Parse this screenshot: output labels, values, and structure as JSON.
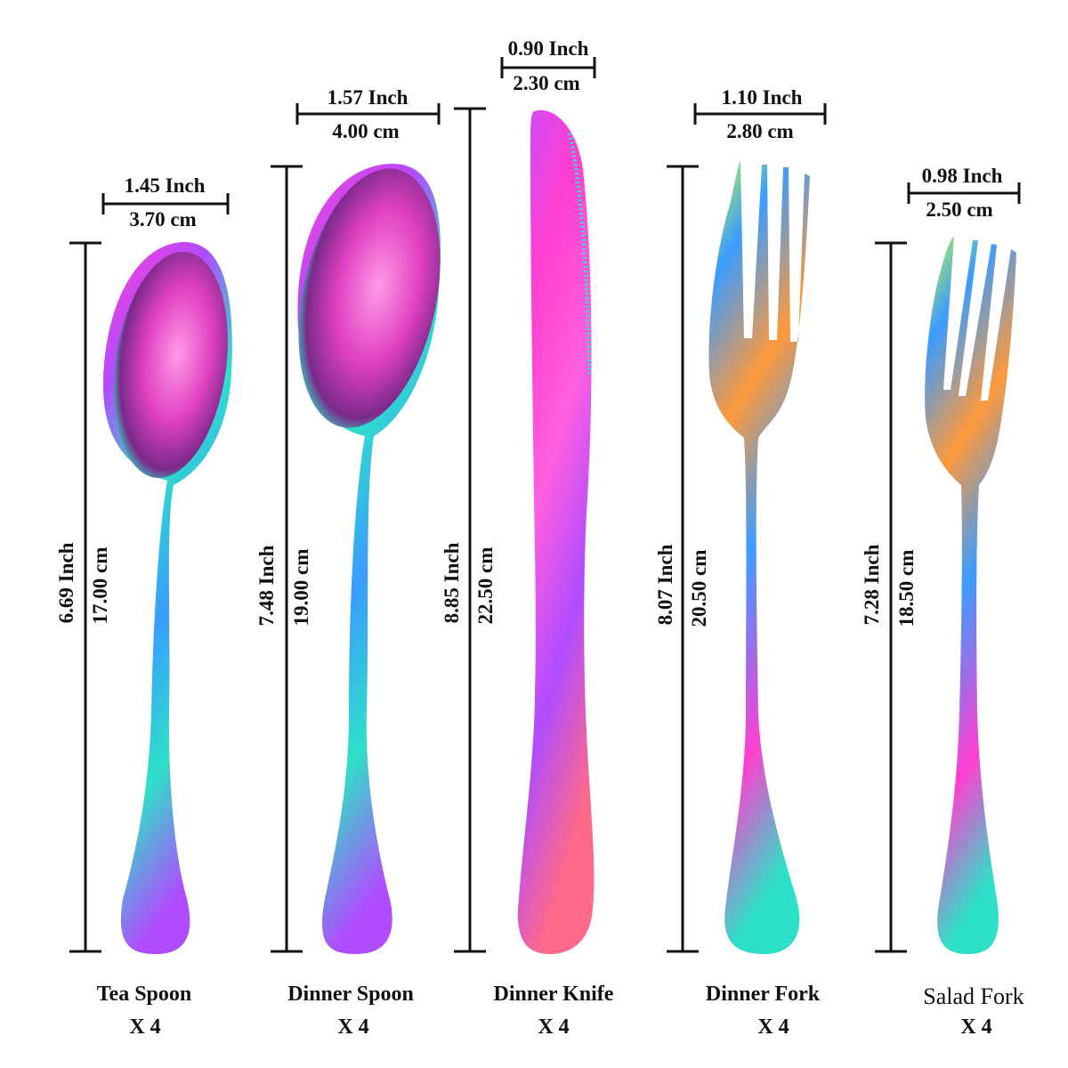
{
  "items": [
    {
      "name": "Tea Spoon",
      "quantity": "X 4",
      "width_in": "1.45 Inch",
      "width_cm": "3.70 cm",
      "length_in": "6.69 Inch",
      "length_cm": "17.00 cm"
    },
    {
      "name": "Dinner Spoon",
      "quantity": "X 4",
      "width_in": "1.57 Inch",
      "width_cm": "4.00 cm",
      "length_in": "7.48 Inch",
      "length_cm": "19.00 cm"
    },
    {
      "name": "Dinner Knife",
      "quantity": "X 4",
      "width_in": "0.90 Inch",
      "width_cm": "2.30 cm",
      "length_in": "8.85 Inch",
      "length_cm": "22.50 cm"
    },
    {
      "name": "Dinner Fork",
      "quantity": "X 4",
      "width_in": "1.10 Inch",
      "width_cm": "2.80 cm",
      "length_in": "8.07 Inch",
      "length_cm": "20.50 cm"
    },
    {
      "name": "Salad Fork",
      "quantity": "X 4",
      "width_in": "0.98 Inch",
      "width_cm": "2.50 cm",
      "length_in": "7.28 Inch",
      "length_cm": "18.50 cm"
    }
  ],
  "colors": {
    "rainbow": [
      "#2fe0c8",
      "#3a9cff",
      "#b04cff",
      "#ff3fd0",
      "#ff9a3c",
      "#c8ff3c"
    ],
    "line": "#111111",
    "background": "#ffffff"
  }
}
